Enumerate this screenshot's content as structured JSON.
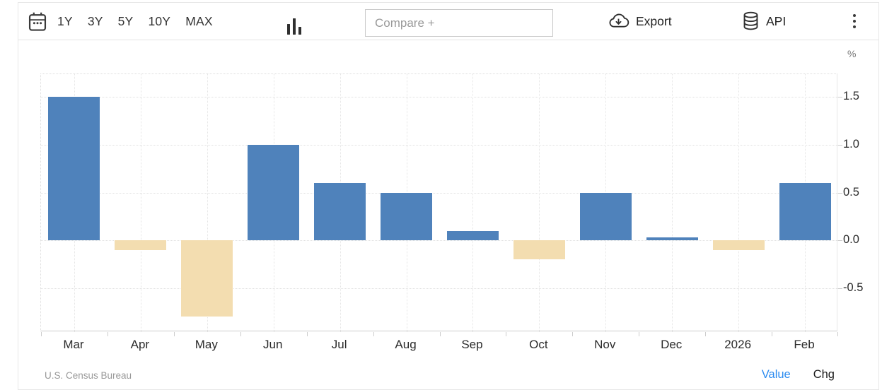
{
  "toolbar": {
    "ranges": [
      "1Y",
      "3Y",
      "5Y",
      "10Y",
      "MAX"
    ],
    "compare_placeholder": "Compare +",
    "export_label": "Export",
    "api_label": "API",
    "icons": [
      "calendar-icon",
      "bar-chart-icon",
      "cloud-download-icon",
      "database-icon",
      "kebab-menu-icon"
    ]
  },
  "chart_data": {
    "type": "bar",
    "categories": [
      "Mar",
      "Apr",
      "May",
      "Jun",
      "Jul",
      "Aug",
      "Sep",
      "Oct",
      "Nov",
      "Dec",
      "2026",
      "Feb"
    ],
    "values": [
      1.5,
      -0.1,
      -0.8,
      1.0,
      0.6,
      0.5,
      0.1,
      -0.2,
      0.5,
      0.03,
      -0.1,
      0.6
    ],
    "title": "",
    "xlabel": "",
    "ylabel": "%",
    "ylim": [
      -0.96,
      1.74
    ],
    "yticks": [
      1.5,
      1.0,
      0.5,
      0.0,
      -0.5
    ],
    "ytick_labels": [
      "1.5",
      "1.0",
      "0.5",
      "0.0",
      "-0.5"
    ],
    "grid": true,
    "legend": "none",
    "positive_color": "#4f82bb",
    "negative_color": "#f3ddb0"
  },
  "footer": {
    "source": "U.S. Census Bureau",
    "value_label": "Value",
    "chg_label": "Chg",
    "value_link_color": "#2b8bf0"
  }
}
